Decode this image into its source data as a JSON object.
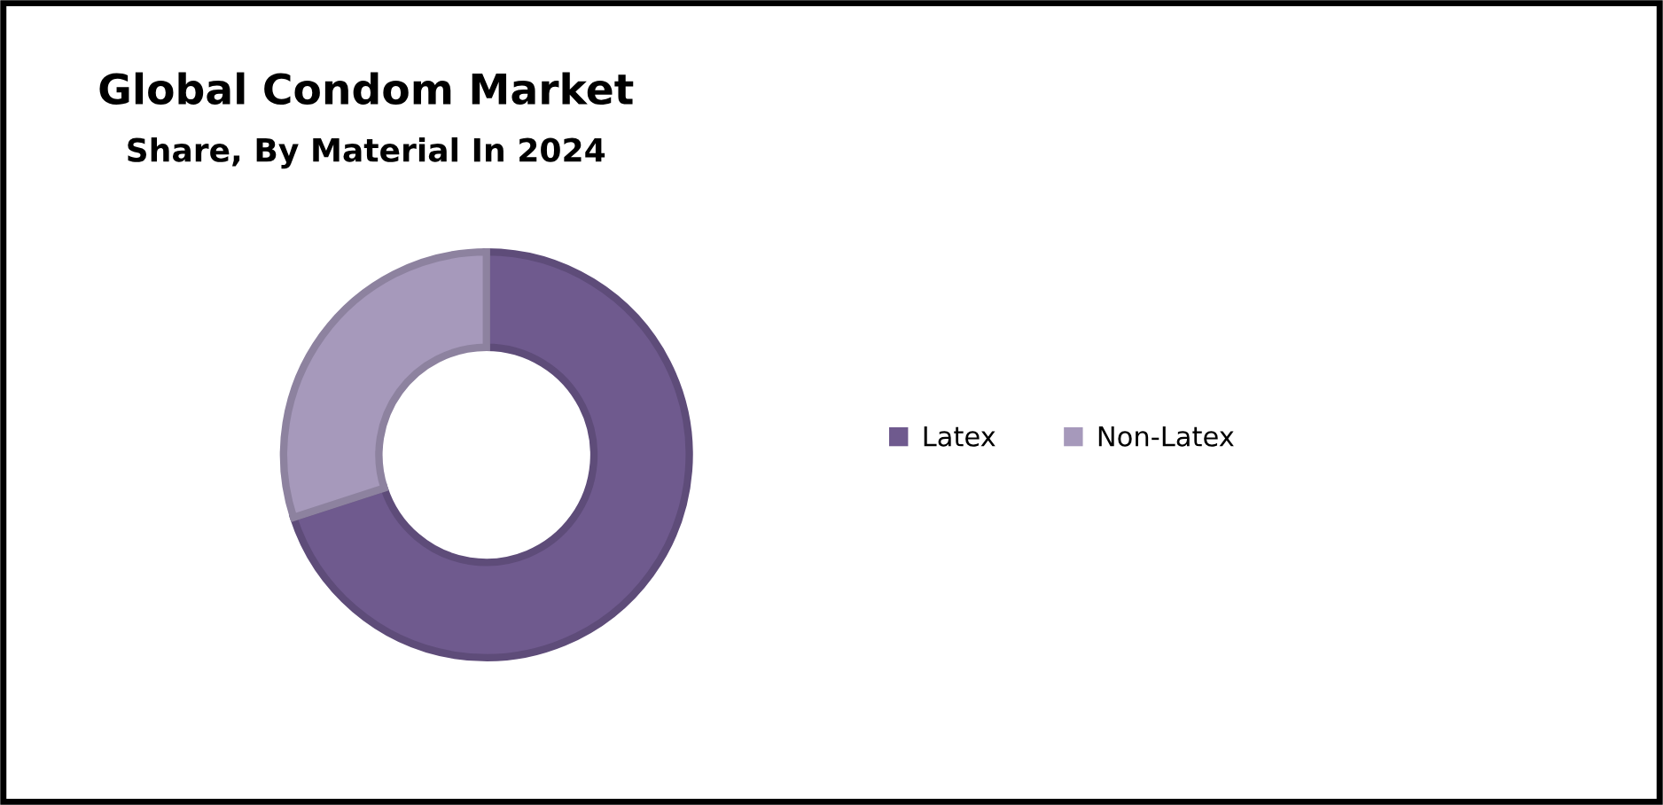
{
  "chart_data": {
    "type": "donut",
    "title": "Global Condom Market",
    "subtitle": "Share, By Material In 2024",
    "categories": [
      "Latex",
      "Non-Latex"
    ],
    "values": [
      70,
      30
    ],
    "colors": [
      "#6f5a8e",
      "#a699bb"
    ],
    "legend": "right"
  }
}
